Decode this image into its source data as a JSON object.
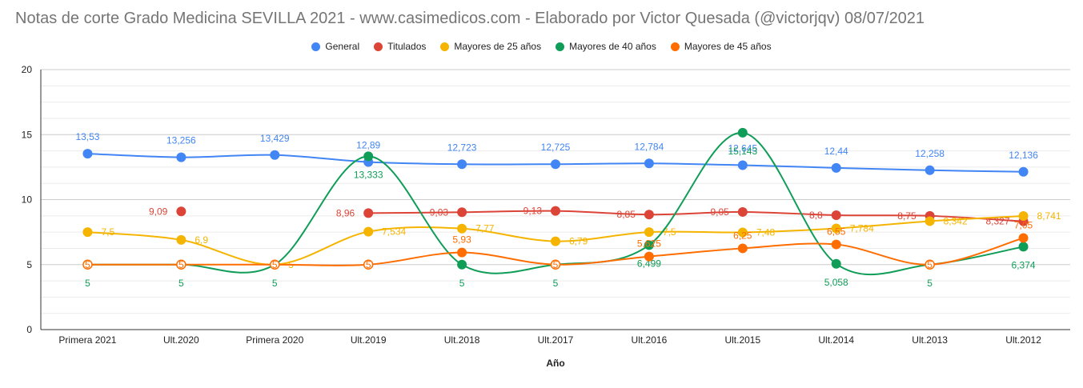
{
  "chart_data": {
    "type": "line",
    "title": "Notas de corte Grado Medicina SEVILLA 2021 - www.casimedicos.com - Elaborado por Victor Quesada (@victorjqv)  08/07/2021",
    "xlabel": "Año",
    "ylabel": "",
    "ylim": [
      0,
      20
    ],
    "yticks": [
      0,
      5,
      10,
      15,
      20
    ],
    "grid": true,
    "legend_position": "top",
    "categories": [
      "Primera 2021",
      "Ult.2020",
      "Primera 2020",
      "Ult.2019",
      "Ult.2018",
      "Ult.2017",
      "Ult.2016",
      "Ult.2015",
      "Ult.2014",
      "Ult.2013",
      "Ult.2012"
    ],
    "series": [
      {
        "name": "General",
        "color": "#4285f4",
        "values": [
          13.53,
          13.256,
          13.429,
          12.89,
          12.723,
          12.725,
          12.784,
          12.645,
          12.44,
          12.258,
          12.136
        ],
        "labels": [
          "13,53",
          "13,256",
          "13,429",
          "12,89",
          "12,723",
          "12,725",
          "12,784",
          "12,645",
          "12,44",
          "12,258",
          "12,136"
        ]
      },
      {
        "name": "Titulados",
        "color": "#db4437",
        "values": [
          null,
          9.09,
          null,
          8.96,
          9.03,
          9.13,
          8.85,
          9.05,
          8.8,
          8.75,
          8.327
        ],
        "labels": [
          "",
          "9,09",
          "",
          "8,96",
          "9,03",
          "9,13",
          "8,85",
          "9,05",
          "8,8",
          "8,75",
          "8,327"
        ]
      },
      {
        "name": "Mayores de 25 años",
        "color": "#f4b400",
        "values": [
          7.5,
          6.9,
          5,
          7.534,
          7.77,
          6.79,
          7.5,
          7.48,
          7.784,
          8.342,
          8.741
        ],
        "labels": [
          "7,5",
          "6,9",
          "5",
          "7,534",
          "7,77",
          "6,79",
          "7,5",
          "7,48",
          "7,784",
          "8,342",
          "8,741"
        ]
      },
      {
        "name": "Mayores de 40 años",
        "color": "#0f9d58",
        "values": [
          5,
          5,
          5,
          13.333,
          5,
          5,
          6.499,
          15.143,
          5.058,
          5,
          6.374
        ],
        "labels": [
          "5",
          "5",
          "5",
          "13,333",
          "5",
          "5",
          "6,499",
          "15,143",
          "5,058",
          "5",
          "6,374"
        ]
      },
      {
        "name": "Mayores de 45 años",
        "color": "#ff6d00",
        "values": [
          5,
          5,
          5,
          5,
          5.93,
          5,
          5.625,
          6.25,
          6.55,
          5,
          7.05
        ],
        "labels": [
          "5",
          "5",
          "5",
          "5",
          "5,93",
          "5",
          "5,625",
          "6,25",
          "6,55",
          "5",
          "7,05"
        ]
      }
    ]
  }
}
